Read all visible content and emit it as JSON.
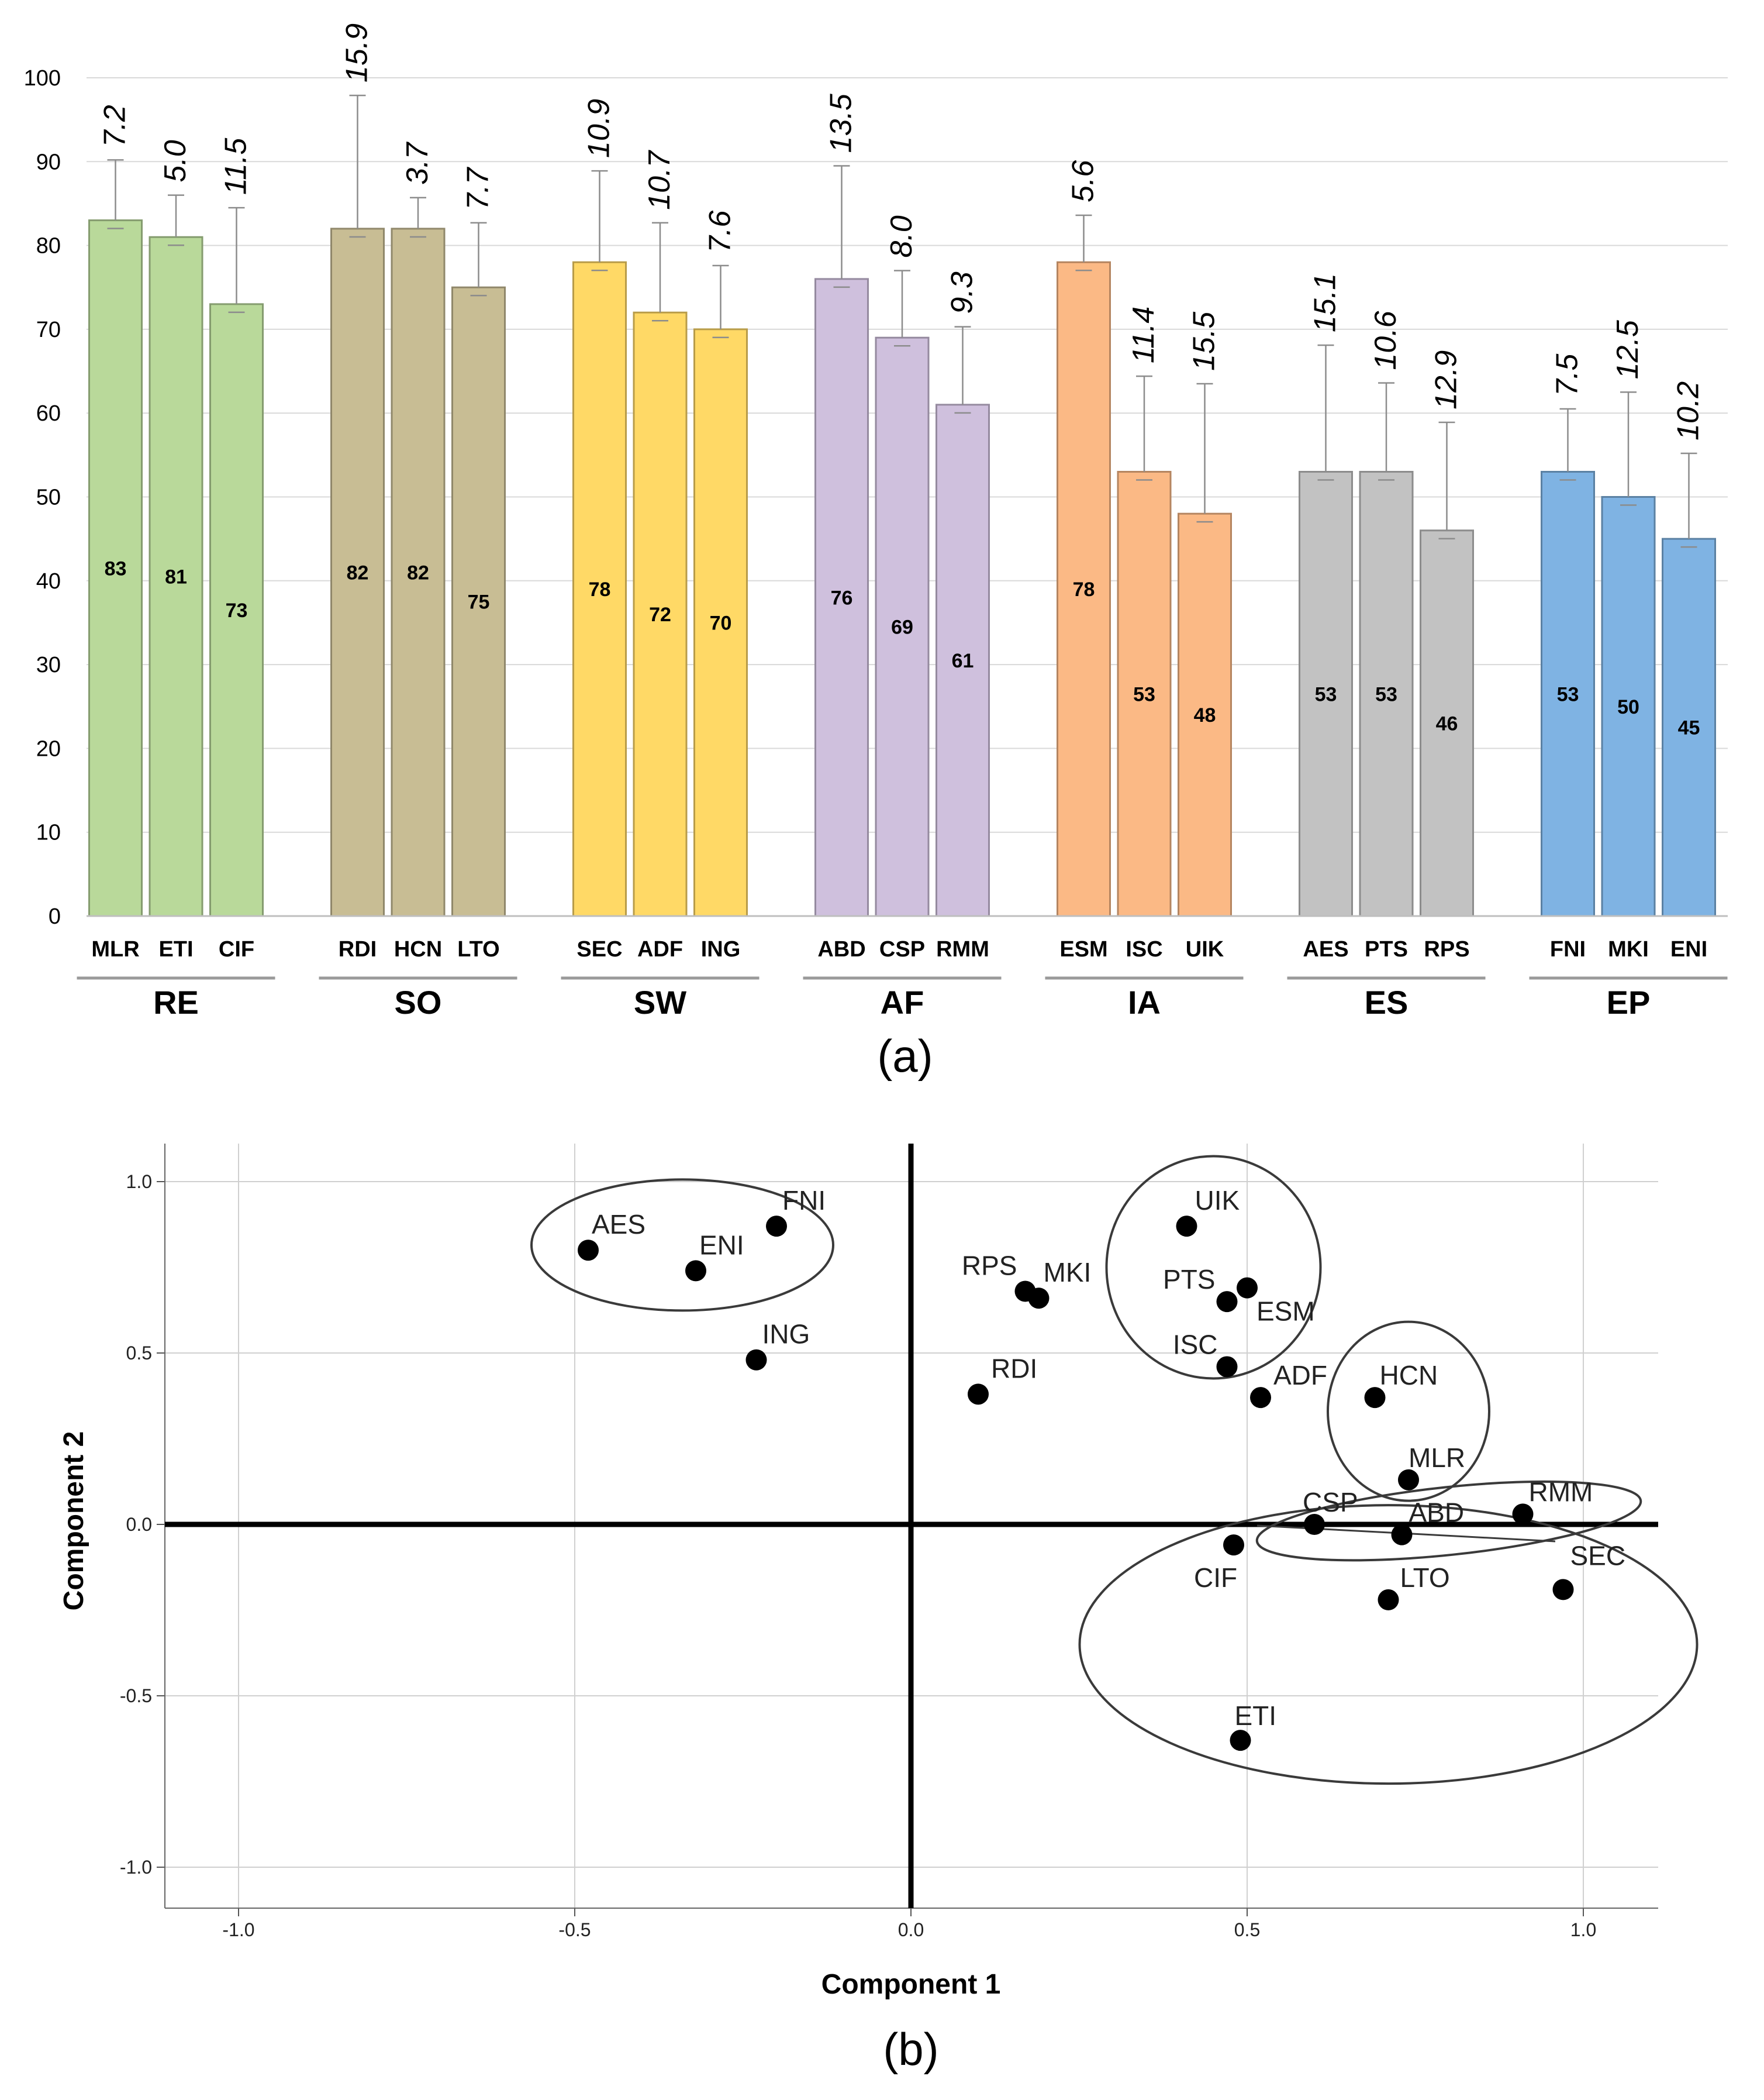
{
  "chart_data": [
    {
      "type": "bar",
      "caption": "(a)",
      "ylim": [
        0,
        100
      ],
      "yticks": [
        "0",
        "10",
        "20",
        "30",
        "40",
        "50",
        "60",
        "70",
        "80",
        "90",
        "100"
      ],
      "grid": "horizontal",
      "groups": [
        {
          "label": "RE",
          "color": "#b9d99a",
          "bars": [
            {
              "category": "MLR",
              "value": 83,
              "value_label": "83",
              "sd": 7.2,
              "sd_label": "7.2"
            },
            {
              "category": "ETI",
              "value": 81,
              "value_label": "81",
              "sd": 5.0,
              "sd_label": "5.0"
            },
            {
              "category": "CIF",
              "value": 73,
              "value_label": "73",
              "sd": 11.5,
              "sd_label": "11.5"
            }
          ]
        },
        {
          "label": "SO",
          "color": "#c8bd94",
          "bars": [
            {
              "category": "RDI",
              "value": 82,
              "value_label": "82",
              "sd": 15.9,
              "sd_label": "15.9"
            },
            {
              "category": "HCN",
              "value": 82,
              "value_label": "82",
              "sd": 3.7,
              "sd_label": "3.7"
            },
            {
              "category": "LTO",
              "value": 75,
              "value_label": "75",
              "sd": 7.7,
              "sd_label": "7.7"
            }
          ]
        },
        {
          "label": "SW",
          "color": "#ffd966",
          "bars": [
            {
              "category": "SEC",
              "value": 78,
              "value_label": "78",
              "sd": 10.9,
              "sd_label": "10.9"
            },
            {
              "category": "ADF",
              "value": 72,
              "value_label": "72",
              "sd": 10.7,
              "sd_label": "10.7"
            },
            {
              "category": "ING",
              "value": 70,
              "value_label": "70",
              "sd": 7.6,
              "sd_label": "7.6"
            }
          ]
        },
        {
          "label": "AF",
          "color": "#cfc0dd",
          "bars": [
            {
              "category": "ABD",
              "value": 76,
              "value_label": "76",
              "sd": 13.5,
              "sd_label": "13.5"
            },
            {
              "category": "CSP",
              "value": 69,
              "value_label": "69",
              "sd": 8.0,
              "sd_label": "8.0"
            },
            {
              "category": "RMM",
              "value": 61,
              "value_label": "61",
              "sd": 9.3,
              "sd_label": "9.3"
            }
          ]
        },
        {
          "label": "IA",
          "color": "#fbb985",
          "bars": [
            {
              "category": "ESM",
              "value": 78,
              "value_label": "78",
              "sd": 5.6,
              "sd_label": "5.6"
            },
            {
              "category": "ISC",
              "value": 53,
              "value_label": "53",
              "sd": 11.4,
              "sd_label": "11.4"
            },
            {
              "category": "UIK",
              "value": 48,
              "value_label": "48",
              "sd": 15.5,
              "sd_label": "15.5"
            }
          ]
        },
        {
          "label": "ES",
          "color": "#c2c2c2",
          "bars": [
            {
              "category": "AES",
              "value": 53,
              "value_label": "53",
              "sd": 15.1,
              "sd_label": "15.1"
            },
            {
              "category": "PTS",
              "value": 53,
              "value_label": "53",
              "sd": 10.6,
              "sd_label": "10.6"
            },
            {
              "category": "RPS",
              "value": 46,
              "value_label": "46",
              "sd": 12.9,
              "sd_label": "12.9"
            }
          ]
        },
        {
          "label": "EP",
          "color": "#7fb3e3",
          "bars": [
            {
              "category": "FNI",
              "value": 53,
              "value_label": "53",
              "sd": 7.5,
              "sd_label": "7.5"
            },
            {
              "category": "MKI",
              "value": 50,
              "value_label": "50",
              "sd": 12.5,
              "sd_label": "12.5"
            },
            {
              "category": "ENI",
              "value": 45,
              "value_label": "45",
              "sd": 10.2,
              "sd_label": "10.2"
            }
          ]
        }
      ]
    },
    {
      "type": "scatter",
      "caption": "(b)",
      "xlabel": "Component 1",
      "ylabel": "Component 2",
      "xlim": [
        -1.1,
        1.1
      ],
      "ylim": [
        -1.1,
        1.1
      ],
      "xticks": [
        {
          "v": -1.0,
          "label": "-1.0"
        },
        {
          "v": -0.5,
          "label": "-0.5"
        },
        {
          "v": 0.0,
          "label": "0.0"
        },
        {
          "v": 0.5,
          "label": "0.5"
        },
        {
          "v": 1.0,
          "label": "1.0"
        }
      ],
      "yticks": [
        {
          "v": -1.0,
          "label": "-1.0"
        },
        {
          "v": -0.5,
          "label": "-0.5"
        },
        {
          "v": 0.0,
          "label": "0.0"
        },
        {
          "v": 0.5,
          "label": "0.5"
        },
        {
          "v": 1.0,
          "label": "1.0"
        }
      ],
      "grid": true,
      "points": [
        {
          "label": "AES",
          "x": -0.48,
          "y": 0.8
        },
        {
          "label": "ENI",
          "x": -0.32,
          "y": 0.74
        },
        {
          "label": "FNI",
          "x": -0.2,
          "y": 0.87
        },
        {
          "label": "ING",
          "x": -0.23,
          "y": 0.48
        },
        {
          "label": "RPS",
          "x": 0.17,
          "y": 0.68
        },
        {
          "label": "MKI",
          "x": 0.19,
          "y": 0.66
        },
        {
          "label": "RDI",
          "x": 0.1,
          "y": 0.38
        },
        {
          "label": "UIK",
          "x": 0.41,
          "y": 0.87
        },
        {
          "label": "PTS",
          "x": 0.47,
          "y": 0.65
        },
        {
          "label": "ESM",
          "x": 0.5,
          "y": 0.69
        },
        {
          "label": "ISC",
          "x": 0.47,
          "y": 0.46
        },
        {
          "label": "ADF",
          "x": 0.52,
          "y": 0.37
        },
        {
          "label": "HCN",
          "x": 0.69,
          "y": 0.37
        },
        {
          "label": "MLR",
          "x": 0.74,
          "y": 0.13
        },
        {
          "label": "CSP",
          "x": 0.6,
          "y": 0.0
        },
        {
          "label": "ABD",
          "x": 0.73,
          "y": -0.03
        },
        {
          "label": "RMM",
          "x": 0.91,
          "y": 0.03
        },
        {
          "label": "CIF",
          "x": 0.48,
          "y": -0.06
        },
        {
          "label": "LTO",
          "x": 0.71,
          "y": -0.22
        },
        {
          "label": "SEC",
          "x": 0.97,
          "y": -0.19
        },
        {
          "label": "ETI",
          "x": 0.49,
          "y": -0.63
        }
      ]
    }
  ]
}
